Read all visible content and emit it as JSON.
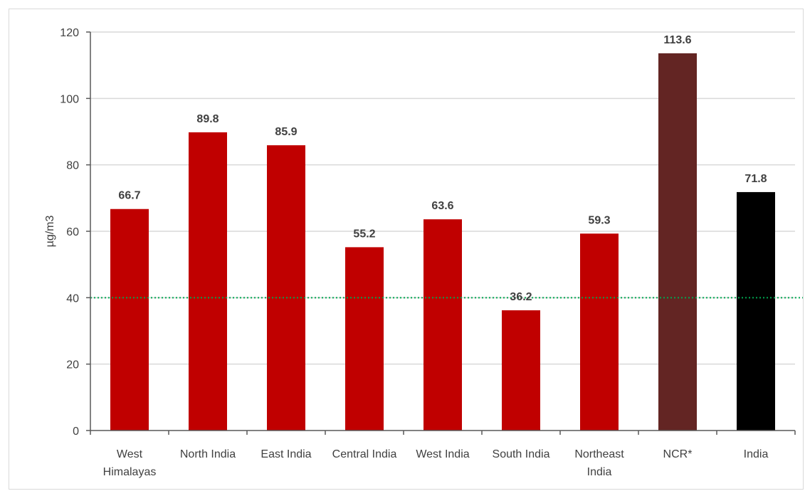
{
  "chart_data": {
    "type": "bar",
    "title": "",
    "xlabel": "",
    "ylabel": "µg/m3",
    "ylim": [
      0,
      120
    ],
    "yticks": [
      0,
      20,
      40,
      60,
      80,
      100,
      120
    ],
    "grid": true,
    "legend": "none",
    "categories": [
      "West Himalayas",
      "North India",
      "East India",
      "Central India",
      "West India",
      "South India",
      "Northeast India",
      "NCR*",
      "India"
    ],
    "category_lines": [
      [
        "West",
        "Himalayas"
      ],
      [
        "North India"
      ],
      [
        "East India"
      ],
      [
        "Central India"
      ],
      [
        "West India"
      ],
      [
        "South India"
      ],
      [
        "Northeast",
        "India"
      ],
      [
        "NCR*"
      ],
      [
        "India"
      ]
    ],
    "values": [
      66.7,
      89.8,
      85.9,
      55.2,
      63.6,
      36.2,
      59.3,
      113.6,
      71.8
    ],
    "data_labels": [
      "66.7",
      "89.8",
      "85.9",
      "55.2",
      "63.6",
      "36.2",
      "59.3",
      "113.6",
      "71.8"
    ],
    "bar_colors": [
      "#c00000",
      "#c00000",
      "#c00000",
      "#c00000",
      "#c00000",
      "#c00000",
      "#c00000",
      "#632523",
      "#000000"
    ],
    "reference_line": {
      "value": 40,
      "color": "#00a650",
      "style": "dotted"
    },
    "colors": {
      "grid": "#d9d9d9",
      "axis": "#595959",
      "text": "#404040"
    }
  }
}
